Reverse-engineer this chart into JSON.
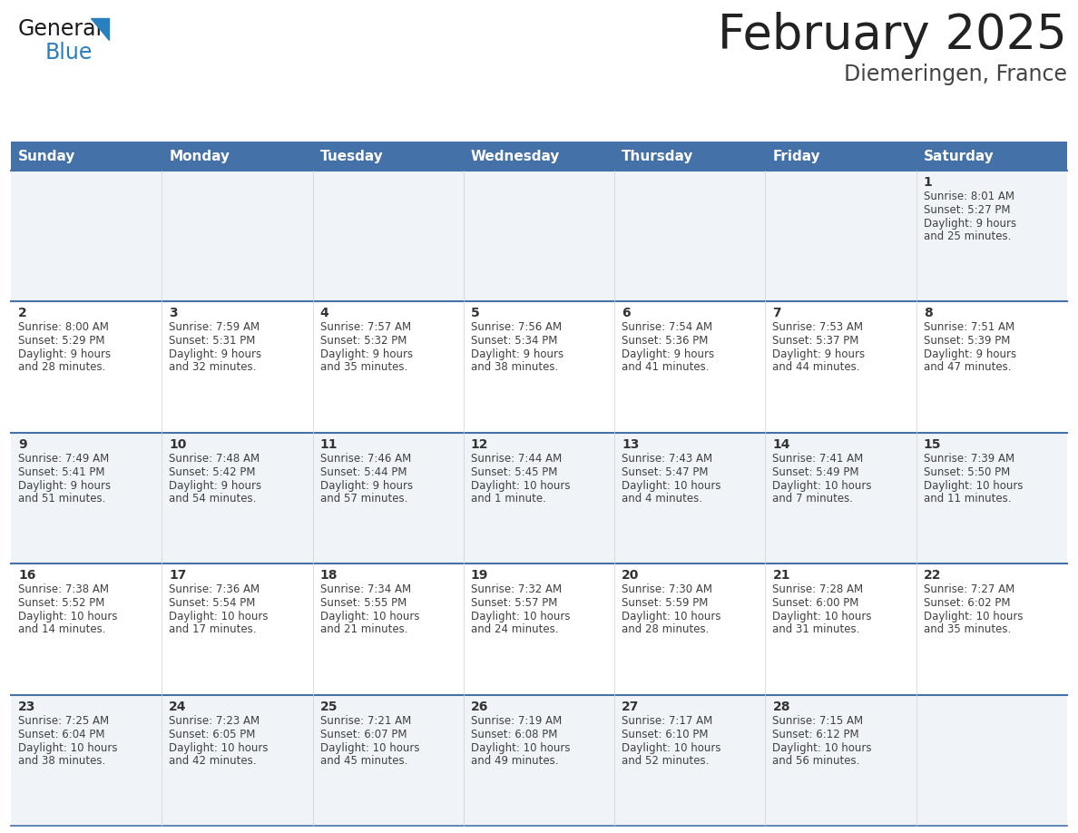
{
  "title": "February 2025",
  "subtitle": "Diemeringen, France",
  "header_color": "#4472a8",
  "header_text_color": "#ffffff",
  "days_of_week": [
    "Sunday",
    "Monday",
    "Tuesday",
    "Wednesday",
    "Thursday",
    "Friday",
    "Saturday"
  ],
  "row_bg_even": "#f0f4f8",
  "row_bg_odd": "#ffffff",
  "divider_color": "#4472a8",
  "text_color": "#404040",
  "day_number_color": "#333333",
  "logo_blue_color": "#2a7fc1",
  "calendar_data": [
    [
      {
        "day": "",
        "sunrise": "",
        "sunset": "",
        "daylight": ""
      },
      {
        "day": "",
        "sunrise": "",
        "sunset": "",
        "daylight": ""
      },
      {
        "day": "",
        "sunrise": "",
        "sunset": "",
        "daylight": ""
      },
      {
        "day": "",
        "sunrise": "",
        "sunset": "",
        "daylight": ""
      },
      {
        "day": "",
        "sunrise": "",
        "sunset": "",
        "daylight": ""
      },
      {
        "day": "",
        "sunrise": "",
        "sunset": "",
        "daylight": ""
      },
      {
        "day": "1",
        "sunrise": "8:01 AM",
        "sunset": "5:27 PM",
        "daylight": "9 hours\nand 25 minutes."
      }
    ],
    [
      {
        "day": "2",
        "sunrise": "8:00 AM",
        "sunset": "5:29 PM",
        "daylight": "9 hours\nand 28 minutes."
      },
      {
        "day": "3",
        "sunrise": "7:59 AM",
        "sunset": "5:31 PM",
        "daylight": "9 hours\nand 32 minutes."
      },
      {
        "day": "4",
        "sunrise": "7:57 AM",
        "sunset": "5:32 PM",
        "daylight": "9 hours\nand 35 minutes."
      },
      {
        "day": "5",
        "sunrise": "7:56 AM",
        "sunset": "5:34 PM",
        "daylight": "9 hours\nand 38 minutes."
      },
      {
        "day": "6",
        "sunrise": "7:54 AM",
        "sunset": "5:36 PM",
        "daylight": "9 hours\nand 41 minutes."
      },
      {
        "day": "7",
        "sunrise": "7:53 AM",
        "sunset": "5:37 PM",
        "daylight": "9 hours\nand 44 minutes."
      },
      {
        "day": "8",
        "sunrise": "7:51 AM",
        "sunset": "5:39 PM",
        "daylight": "9 hours\nand 47 minutes."
      }
    ],
    [
      {
        "day": "9",
        "sunrise": "7:49 AM",
        "sunset": "5:41 PM",
        "daylight": "9 hours\nand 51 minutes."
      },
      {
        "day": "10",
        "sunrise": "7:48 AM",
        "sunset": "5:42 PM",
        "daylight": "9 hours\nand 54 minutes."
      },
      {
        "day": "11",
        "sunrise": "7:46 AM",
        "sunset": "5:44 PM",
        "daylight": "9 hours\nand 57 minutes."
      },
      {
        "day": "12",
        "sunrise": "7:44 AM",
        "sunset": "5:45 PM",
        "daylight": "10 hours\nand 1 minute."
      },
      {
        "day": "13",
        "sunrise": "7:43 AM",
        "sunset": "5:47 PM",
        "daylight": "10 hours\nand 4 minutes."
      },
      {
        "day": "14",
        "sunrise": "7:41 AM",
        "sunset": "5:49 PM",
        "daylight": "10 hours\nand 7 minutes."
      },
      {
        "day": "15",
        "sunrise": "7:39 AM",
        "sunset": "5:50 PM",
        "daylight": "10 hours\nand 11 minutes."
      }
    ],
    [
      {
        "day": "16",
        "sunrise": "7:38 AM",
        "sunset": "5:52 PM",
        "daylight": "10 hours\nand 14 minutes."
      },
      {
        "day": "17",
        "sunrise": "7:36 AM",
        "sunset": "5:54 PM",
        "daylight": "10 hours\nand 17 minutes."
      },
      {
        "day": "18",
        "sunrise": "7:34 AM",
        "sunset": "5:55 PM",
        "daylight": "10 hours\nand 21 minutes."
      },
      {
        "day": "19",
        "sunrise": "7:32 AM",
        "sunset": "5:57 PM",
        "daylight": "10 hours\nand 24 minutes."
      },
      {
        "day": "20",
        "sunrise": "7:30 AM",
        "sunset": "5:59 PM",
        "daylight": "10 hours\nand 28 minutes."
      },
      {
        "day": "21",
        "sunrise": "7:28 AM",
        "sunset": "6:00 PM",
        "daylight": "10 hours\nand 31 minutes."
      },
      {
        "day": "22",
        "sunrise": "7:27 AM",
        "sunset": "6:02 PM",
        "daylight": "10 hours\nand 35 minutes."
      }
    ],
    [
      {
        "day": "23",
        "sunrise": "7:25 AM",
        "sunset": "6:04 PM",
        "daylight": "10 hours\nand 38 minutes."
      },
      {
        "day": "24",
        "sunrise": "7:23 AM",
        "sunset": "6:05 PM",
        "daylight": "10 hours\nand 42 minutes."
      },
      {
        "day": "25",
        "sunrise": "7:21 AM",
        "sunset": "6:07 PM",
        "daylight": "10 hours\nand 45 minutes."
      },
      {
        "day": "26",
        "sunrise": "7:19 AM",
        "sunset": "6:08 PM",
        "daylight": "10 hours\nand 49 minutes."
      },
      {
        "day": "27",
        "sunrise": "7:17 AM",
        "sunset": "6:10 PM",
        "daylight": "10 hours\nand 52 minutes."
      },
      {
        "day": "28",
        "sunrise": "7:15 AM",
        "sunset": "6:12 PM",
        "daylight": "10 hours\nand 56 minutes."
      },
      {
        "day": "",
        "sunrise": "",
        "sunset": "",
        "daylight": ""
      }
    ]
  ]
}
